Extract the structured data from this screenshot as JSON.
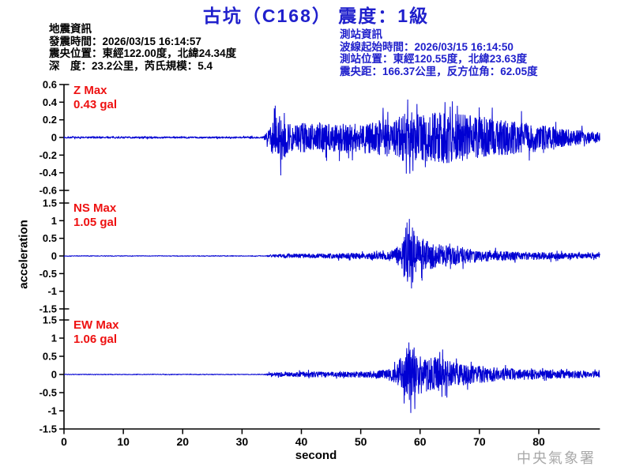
{
  "title": "古坑（C168） 震度：1級",
  "earthquake_info": {
    "heading": "地震資訊",
    "lines": [
      "發震時間：2026/03/15 16:14:57",
      "震央位置：東經122.00度，北緯24.34度",
      "深　度：23.2公里，芮氏規模：5.4"
    ]
  },
  "station_info": {
    "heading": "測站資訊",
    "lines": [
      "波線起始時間：2026/03/15 16:14:50",
      "測站位置：東經120.55度，北緯23.63度",
      "震央距：166.37公里，反方位角：62.05度"
    ]
  },
  "watermark": "中央氣象署",
  "colors": {
    "title_blue": "#2020cc",
    "waveform_blue": "#0000d2",
    "alert_red": "#ee1111",
    "axis_black": "#000000",
    "watermark_gray": "#a9a9a9"
  },
  "chart_data": {
    "type": "line",
    "xlabel": "second",
    "ylabel": "acceleration",
    "x_range": [
      0,
      90
    ],
    "x_ticks": [
      0,
      10,
      20,
      30,
      40,
      50,
      60,
      70,
      80
    ],
    "grid": false,
    "series": [
      {
        "name": "Z",
        "label": "Z Max",
        "max_label": "0.43 gal",
        "max_value": 0.43,
        "unit": "gal",
        "ylim": [
          -0.6,
          0.6
        ],
        "y_ticks": [
          0.6,
          0.4,
          0.2,
          0,
          -0.2,
          -0.4,
          -0.6
        ],
        "onset_s": 34,
        "clamp": 0.41,
        "envelope": [
          [
            0,
            0.012
          ],
          [
            33.6,
            0.012
          ],
          [
            34.3,
            0.07
          ],
          [
            35.2,
            0.2
          ],
          [
            36.5,
            0.27
          ],
          [
            38,
            0.18
          ],
          [
            42,
            0.16
          ],
          [
            47,
            0.16
          ],
          [
            52,
            0.19
          ],
          [
            56,
            0.23
          ],
          [
            58,
            0.3
          ],
          [
            60,
            0.26
          ],
          [
            63.5,
            0.3
          ],
          [
            67,
            0.27
          ],
          [
            71,
            0.22
          ],
          [
            76,
            0.19
          ],
          [
            81,
            0.14
          ],
          [
            86,
            0.09
          ],
          [
            90.3,
            0.06
          ]
        ],
        "peaks": [
          {
            "t": 36.5,
            "v": -0.43
          },
          {
            "t": 35.6,
            "v": 0.36
          },
          {
            "t": 57.9,
            "v": 0.43
          },
          {
            "t": 58.8,
            "v": -0.38
          },
          {
            "t": 64.2,
            "v": 0.4
          }
        ]
      },
      {
        "name": "NS",
        "label": "NS Max",
        "max_label": "1.05 gal",
        "max_value": 1.05,
        "unit": "gal",
        "ylim": [
          -1.5,
          1.5
        ],
        "y_ticks": [
          1.5,
          1,
          0.5,
          0,
          -0.5,
          -1,
          -1.5
        ],
        "onset_s": 34,
        "clamp": 0.95,
        "envelope": [
          [
            0,
            0.012
          ],
          [
            33.8,
            0.012
          ],
          [
            34.6,
            0.04
          ],
          [
            37,
            0.06
          ],
          [
            42,
            0.07
          ],
          [
            47,
            0.08
          ],
          [
            51,
            0.09
          ],
          [
            54,
            0.11
          ],
          [
            55.8,
            0.2
          ],
          [
            57,
            0.45
          ],
          [
            57.8,
            0.75
          ],
          [
            58.6,
            0.85
          ],
          [
            59.6,
            0.6
          ],
          [
            61,
            0.45
          ],
          [
            63,
            0.33
          ],
          [
            65.5,
            0.27
          ],
          [
            68,
            0.21
          ],
          [
            71,
            0.16
          ],
          [
            75,
            0.13
          ],
          [
            80,
            0.11
          ],
          [
            85,
            0.09
          ],
          [
            90.3,
            0.07
          ]
        ],
        "peaks": [
          {
            "t": 57.6,
            "v": 0.8
          },
          {
            "t": 58.2,
            "v": 1.05
          },
          {
            "t": 58.55,
            "v": -0.92
          },
          {
            "t": 60.3,
            "v": -0.7
          },
          {
            "t": 65,
            "v": 0.35
          }
        ]
      },
      {
        "name": "EW",
        "label": "EW Max",
        "max_label": "1.06 gal",
        "max_value": 1.06,
        "unit": "gal",
        "ylim": [
          -1.5,
          1.5
        ],
        "y_ticks": [
          1.5,
          1,
          0.5,
          0,
          -0.5,
          -1,
          -1.5
        ],
        "onset_s": 34,
        "clamp": 0.98,
        "envelope": [
          [
            0,
            0.012
          ],
          [
            33.8,
            0.012
          ],
          [
            34.6,
            0.05
          ],
          [
            37,
            0.07
          ],
          [
            42,
            0.08
          ],
          [
            47,
            0.08
          ],
          [
            51,
            0.09
          ],
          [
            54,
            0.12
          ],
          [
            55.8,
            0.25
          ],
          [
            57,
            0.55
          ],
          [
            58,
            0.8
          ],
          [
            58.8,
            0.85
          ],
          [
            60,
            0.55
          ],
          [
            61.5,
            0.45
          ],
          [
            63,
            0.5
          ],
          [
            64.5,
            0.38
          ],
          [
            66.5,
            0.3
          ],
          [
            69,
            0.26
          ],
          [
            72,
            0.2
          ],
          [
            76,
            0.16
          ],
          [
            81,
            0.13
          ],
          [
            86,
            0.11
          ],
          [
            90.3,
            0.08
          ]
        ],
        "peaks": [
          {
            "t": 57.3,
            "v": -0.8
          },
          {
            "t": 58.1,
            "v": 0.88
          },
          {
            "t": 58.45,
            "v": -1.06
          },
          {
            "t": 59.1,
            "v": -0.95
          },
          {
            "t": 63.3,
            "v": 0.62
          }
        ]
      }
    ]
  }
}
